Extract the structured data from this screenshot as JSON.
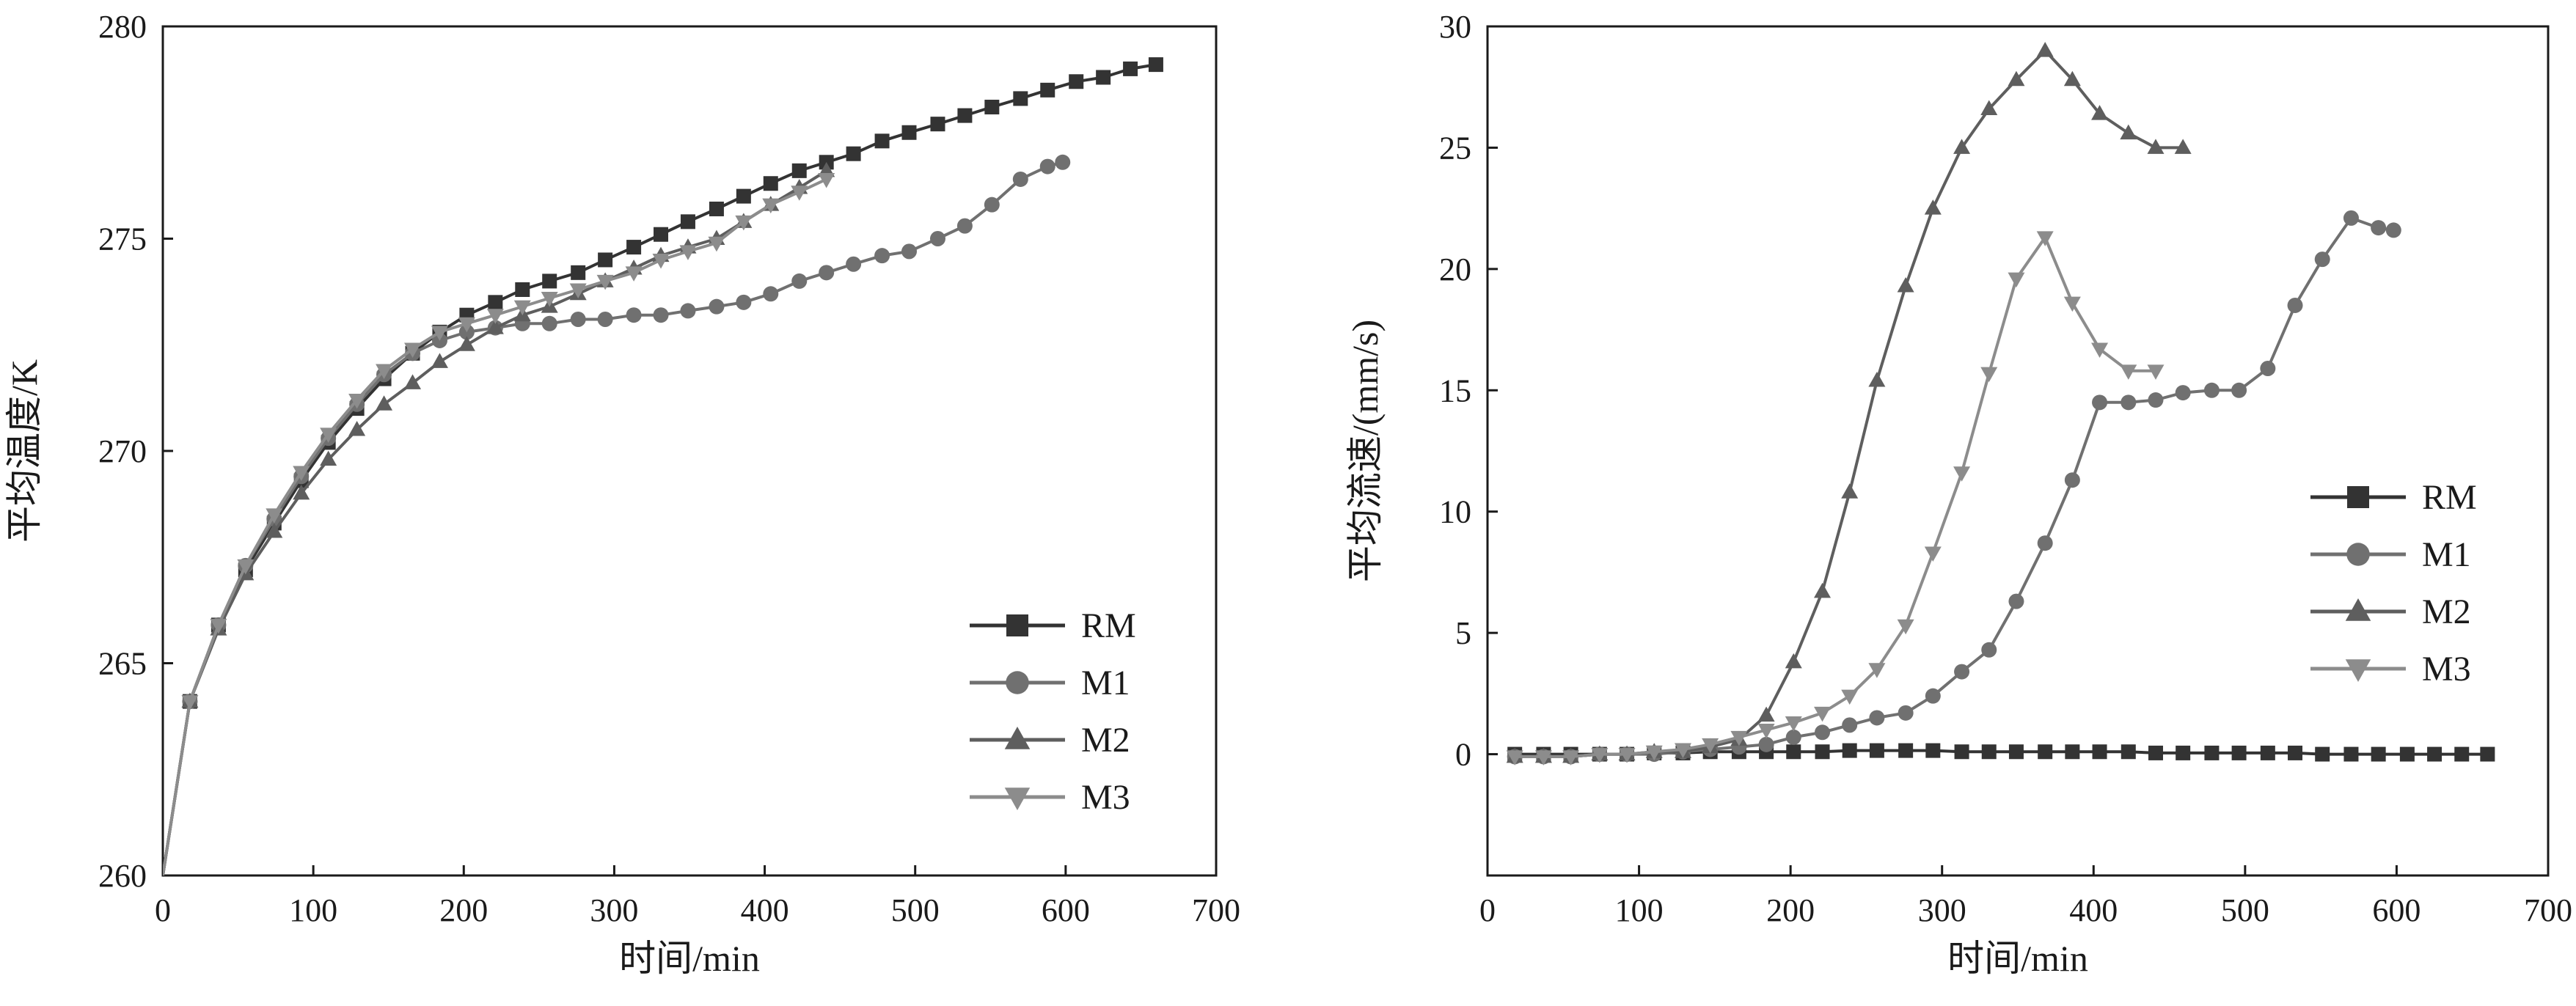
{
  "chart_data": [
    {
      "type": "line",
      "title": "",
      "xlabel": "时间/min",
      "ylabel": "平均温度/K",
      "xlim": [
        0,
        700
      ],
      "ylim": [
        260,
        280
      ],
      "xticks": [
        "0",
        "100",
        "200",
        "300",
        "400",
        "500",
        "600",
        "700"
      ],
      "yticks": [
        "260",
        "265",
        "270",
        "275",
        "280"
      ],
      "grid": false,
      "legend_position": "bottom-right",
      "series": [
        {
          "name": "RM",
          "marker": "square",
          "color": "#333333",
          "x": [
            0,
            18,
            37,
            55,
            74,
            92,
            110,
            129,
            147,
            166,
            184,
            202,
            221,
            239,
            257,
            276,
            294,
            313,
            331,
            349,
            368,
            386,
            404,
            423,
            441,
            459,
            478,
            496,
            515,
            533,
            551,
            570,
            588,
            607,
            625,
            643,
            660
          ],
          "y": [
            260.0,
            264.1,
            265.9,
            267.2,
            268.3,
            269.3,
            270.2,
            271.0,
            271.7,
            272.3,
            272.8,
            273.2,
            273.5,
            273.8,
            274.0,
            274.2,
            274.5,
            274.8,
            275.1,
            275.4,
            275.7,
            276.0,
            276.3,
            276.6,
            276.8,
            277.0,
            277.3,
            277.5,
            277.7,
            277.9,
            278.1,
            278.3,
            278.5,
            278.7,
            278.8,
            279.0,
            279.1
          ]
        },
        {
          "name": "M1",
          "marker": "circle",
          "color": "#707070",
          "x": [
            0,
            18,
            37,
            55,
            74,
            92,
            110,
            129,
            147,
            166,
            184,
            202,
            221,
            239,
            257,
            276,
            294,
            313,
            331,
            349,
            368,
            386,
            404,
            423,
            441,
            459,
            478,
            496,
            515,
            533,
            551,
            570,
            588,
            598
          ],
          "y": [
            260.0,
            264.1,
            265.9,
            267.3,
            268.4,
            269.4,
            270.3,
            271.1,
            271.8,
            272.3,
            272.6,
            272.8,
            272.9,
            273.0,
            273.0,
            273.1,
            273.1,
            273.2,
            273.2,
            273.3,
            273.4,
            273.5,
            273.7,
            274.0,
            274.2,
            274.4,
            274.6,
            274.7,
            275.0,
            275.3,
            275.8,
            276.4,
            276.7,
            276.8
          ]
        },
        {
          "name": "M2",
          "marker": "triangle-up",
          "color": "#5e5e5e",
          "x": [
            0,
            18,
            37,
            55,
            74,
            92,
            110,
            129,
            147,
            166,
            184,
            202,
            221,
            239,
            257,
            276,
            294,
            313,
            331,
            349,
            368,
            386,
            404,
            423,
            441
          ],
          "y": [
            260.0,
            264.1,
            265.8,
            267.1,
            268.1,
            269.0,
            269.8,
            270.5,
            271.1,
            271.6,
            272.1,
            272.5,
            272.9,
            273.2,
            273.4,
            273.7,
            274.0,
            274.3,
            274.6,
            274.8,
            275.0,
            275.4,
            275.8,
            276.2,
            276.6
          ]
        },
        {
          "name": "M3",
          "marker": "triangle-down",
          "color": "#8c8c8c",
          "x": [
            0,
            18,
            37,
            55,
            74,
            92,
            110,
            129,
            147,
            166,
            184,
            202,
            221,
            239,
            257,
            276,
            294,
            313,
            331,
            349,
            368,
            386,
            404,
            423,
            441
          ],
          "y": [
            260.0,
            264.1,
            265.9,
            267.3,
            268.5,
            269.5,
            270.4,
            271.2,
            271.9,
            272.4,
            272.8,
            273.0,
            273.2,
            273.4,
            273.6,
            273.8,
            274.0,
            274.2,
            274.5,
            274.7,
            274.9,
            275.4,
            275.8,
            276.1,
            276.4
          ]
        }
      ]
    },
    {
      "type": "line",
      "title": "",
      "xlabel": "时间/min",
      "ylabel": "平均流速/(mm/s)",
      "xlim": [
        0,
        700
      ],
      "ylim": [
        -5,
        30
      ],
      "xticks": [
        "0",
        "100",
        "200",
        "300",
        "400",
        "500",
        "600",
        "700"
      ],
      "yticks": [
        "0",
        "5",
        "10",
        "15",
        "20",
        "25",
        "30"
      ],
      "grid": false,
      "legend_position": "center-right",
      "series": [
        {
          "name": "RM",
          "marker": "square",
          "color": "#333333",
          "x": [
            18,
            37,
            55,
            74,
            92,
            110,
            129,
            147,
            166,
            184,
            202,
            221,
            239,
            257,
            276,
            294,
            313,
            331,
            349,
            368,
            386,
            404,
            423,
            441,
            459,
            478,
            496,
            515,
            533,
            551,
            570,
            588,
            607,
            625,
            643,
            660
          ],
          "y": [
            0.0,
            0.0,
            0.0,
            0.0,
            0.0,
            0.05,
            0.05,
            0.1,
            0.1,
            0.1,
            0.1,
            0.1,
            0.15,
            0.15,
            0.15,
            0.15,
            0.1,
            0.1,
            0.1,
            0.1,
            0.1,
            0.1,
            0.1,
            0.05,
            0.05,
            0.05,
            0.05,
            0.05,
            0.05,
            0.0,
            0.0,
            0.0,
            0.0,
            0.0,
            0.0,
            0.0
          ]
        },
        {
          "name": "M1",
          "marker": "circle",
          "color": "#707070",
          "x": [
            18,
            37,
            55,
            74,
            92,
            110,
            129,
            147,
            166,
            184,
            202,
            221,
            239,
            257,
            276,
            294,
            313,
            331,
            349,
            368,
            386,
            404,
            423,
            441,
            459,
            478,
            496,
            515,
            533,
            551,
            570,
            588,
            598
          ],
          "y": [
            -0.1,
            -0.1,
            -0.1,
            0.0,
            0.0,
            0.0,
            0.1,
            0.2,
            0.3,
            0.4,
            0.7,
            0.9,
            1.2,
            1.5,
            1.7,
            2.4,
            3.4,
            4.3,
            6.3,
            8.7,
            11.3,
            14.5,
            14.5,
            14.6,
            14.9,
            15.0,
            15.0,
            15.9,
            18.5,
            20.4,
            22.1,
            21.7,
            21.6
          ]
        },
        {
          "name": "M2",
          "marker": "triangle-up",
          "color": "#5e5e5e",
          "x": [
            18,
            37,
            55,
            74,
            92,
            110,
            129,
            147,
            166,
            184,
            202,
            221,
            239,
            257,
            276,
            294,
            313,
            331,
            349,
            368,
            386,
            404,
            423,
            441,
            459
          ],
          "y": [
            -0.1,
            -0.1,
            -0.1,
            0.0,
            0.0,
            0.1,
            0.1,
            0.3,
            0.6,
            1.6,
            3.8,
            6.7,
            10.8,
            15.4,
            19.3,
            22.5,
            25.0,
            26.6,
            27.8,
            29.0,
            27.8,
            26.4,
            25.6,
            25.0,
            25.0
          ]
        },
        {
          "name": "M3",
          "marker": "triangle-down",
          "color": "#8c8c8c",
          "x": [
            18,
            37,
            55,
            74,
            92,
            110,
            129,
            147,
            166,
            184,
            202,
            221,
            239,
            257,
            276,
            294,
            313,
            331,
            349,
            368,
            386,
            404,
            423,
            441
          ],
          "y": [
            -0.1,
            -0.1,
            -0.1,
            0.0,
            0.0,
            0.1,
            0.2,
            0.4,
            0.7,
            1.0,
            1.3,
            1.7,
            2.4,
            3.5,
            5.3,
            8.3,
            11.6,
            15.7,
            19.6,
            21.3,
            18.6,
            16.7,
            15.8,
            15.8
          ]
        }
      ]
    }
  ]
}
